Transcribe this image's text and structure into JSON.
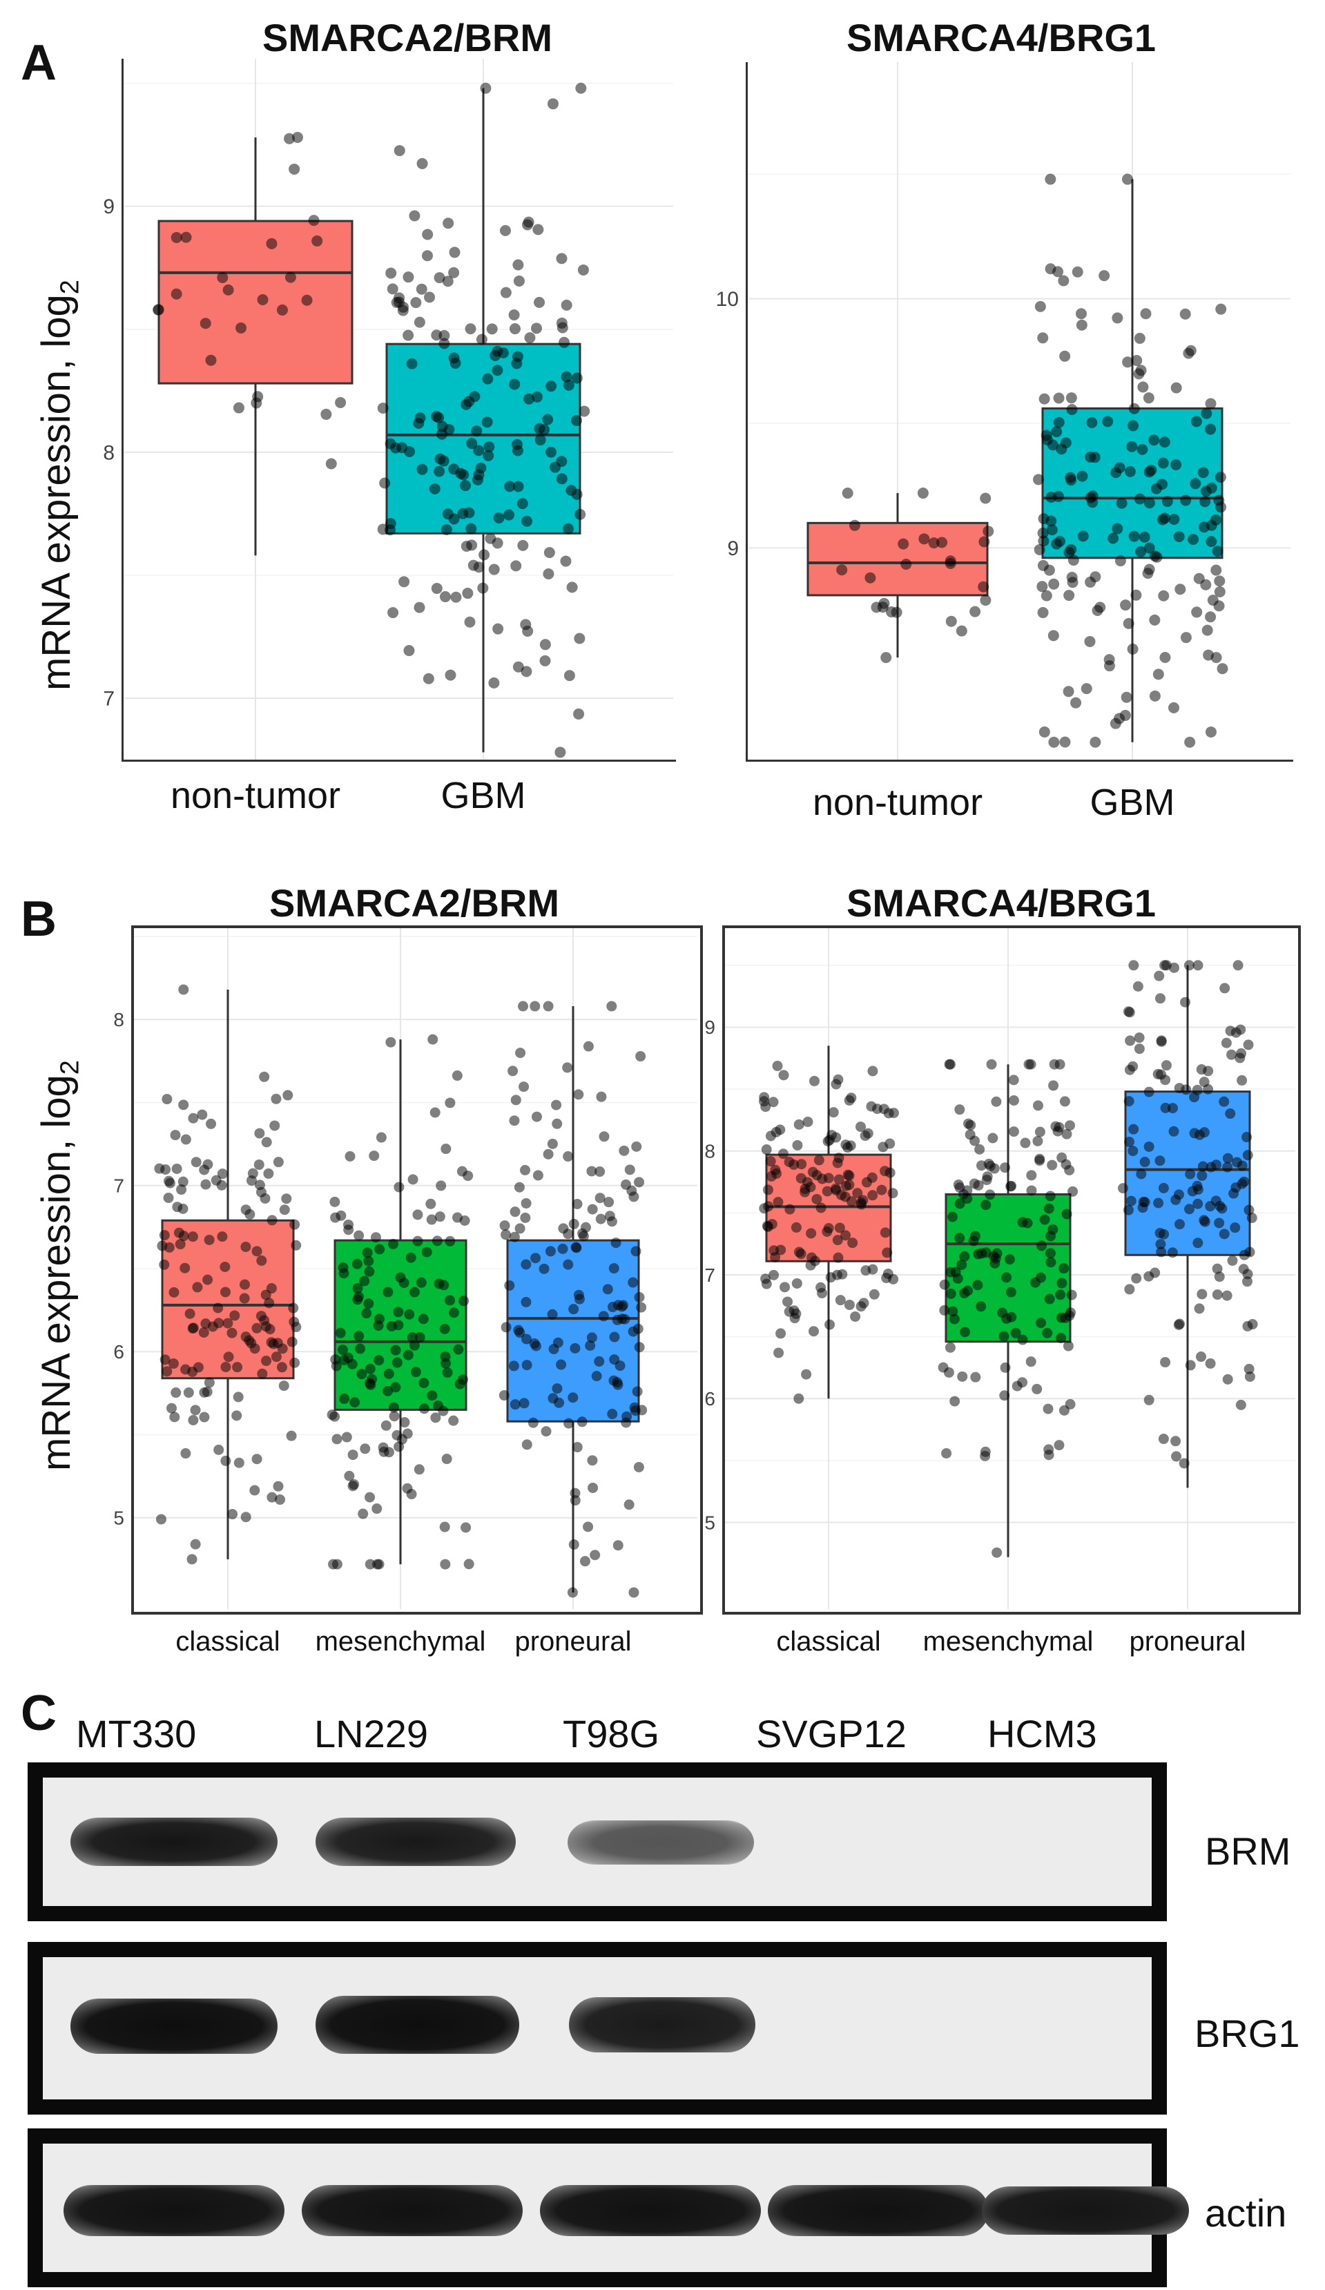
{
  "panels": {
    "A": "A",
    "B": "B",
    "C": "C"
  },
  "y_axis_label": "mRNA expression, log",
  "y_axis_label_sub": "2",
  "chart_data": [
    {
      "id": "A1",
      "type": "box",
      "title": "SMARCA2/BRM",
      "categories": [
        "non-tumor",
        "GBM"
      ],
      "colors": [
        "#f8766d",
        "#00bfc4"
      ],
      "ylim": [
        6.75,
        9.6
      ],
      "yticks": [
        7,
        8,
        9
      ],
      "boxes": [
        {
          "q1": 8.28,
          "median": 8.73,
          "q3": 8.94,
          "whisker_low": 7.58,
          "whisker_high": 9.28,
          "n_points": 26
        },
        {
          "q1": 7.67,
          "median": 8.07,
          "q3": 8.44,
          "whisker_low": 6.78,
          "whisker_high": 9.48,
          "n_points": 170
        }
      ]
    },
    {
      "id": "A2",
      "type": "box",
      "title": "SMARCA4/BRG1",
      "categories": [
        "non-tumor",
        "GBM"
      ],
      "colors": [
        "#f8766d",
        "#00bfc4"
      ],
      "ylim": [
        8.15,
        10.95
      ],
      "yticks": [
        9,
        10
      ],
      "boxes": [
        {
          "q1": 8.81,
          "median": 8.94,
          "q3": 9.1,
          "whisker_low": 8.56,
          "whisker_high": 9.22,
          "n_points": 26
        },
        {
          "q1": 8.96,
          "median": 9.2,
          "q3": 9.56,
          "whisker_low": 8.22,
          "whisker_high": 10.48,
          "n_points": 170
        }
      ]
    },
    {
      "id": "B1",
      "type": "box",
      "title": "SMARCA2/BRM",
      "categories": [
        "classical",
        "mesenchymal",
        "proneural"
      ],
      "colors": [
        "#f8766d",
        "#00ba38",
        "#3c9dff"
      ],
      "ylim": [
        4.45,
        8.55
      ],
      "yticks": [
        5,
        6,
        7,
        8
      ],
      "boxes": [
        {
          "q1": 5.84,
          "median": 6.28,
          "q3": 6.79,
          "whisker_low": 4.75,
          "whisker_high": 8.18,
          "n_points": 140
        },
        {
          "q1": 5.65,
          "median": 6.06,
          "q3": 6.67,
          "whisker_low": 4.72,
          "whisker_high": 7.88,
          "n_points": 140
        },
        {
          "q1": 5.58,
          "median": 6.2,
          "q3": 6.67,
          "whisker_low": 4.55,
          "whisker_high": 8.08,
          "n_points": 140
        }
      ]
    },
    {
      "id": "B2",
      "type": "box",
      "title": "SMARCA4/BRG1",
      "categories": [
        "classical",
        "mesenchymal",
        "proneural"
      ],
      "colors": [
        "#f8766d",
        "#00ba38",
        "#3c9dff"
      ],
      "ylim": [
        4.3,
        9.8
      ],
      "yticks": [
        5,
        6,
        7,
        8,
        9
      ],
      "boxes": [
        {
          "q1": 7.11,
          "median": 7.55,
          "q3": 7.97,
          "whisker_low": 6.0,
          "whisker_high": 8.85,
          "n_points": 140
        },
        {
          "q1": 6.46,
          "median": 7.25,
          "q3": 7.65,
          "whisker_low": 4.72,
          "whisker_high": 8.7,
          "n_points": 140
        },
        {
          "q1": 7.16,
          "median": 7.85,
          "q3": 8.48,
          "whisker_low": 5.28,
          "whisker_high": 9.5,
          "n_points": 140
        }
      ]
    }
  ],
  "western_blot": {
    "lanes": [
      "MT330",
      "LN229",
      "T98G",
      "SVGP12",
      "HCM3"
    ],
    "proteins": [
      "BRM",
      "BRG1",
      "actin"
    ]
  }
}
